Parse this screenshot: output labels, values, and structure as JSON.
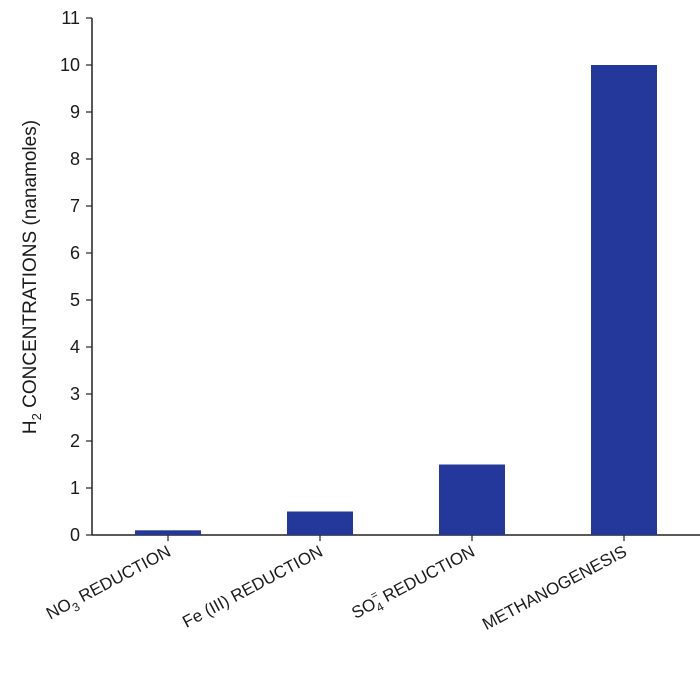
{
  "chart_data": {
    "type": "bar",
    "categories": [
      {
        "base": "NO",
        "sub": "3",
        "sup": "",
        "rest": " REDUCTION"
      },
      {
        "base": "Fe (III) REDUCTION",
        "sub": "",
        "sup": "",
        "rest": ""
      },
      {
        "base": "SO",
        "sub": "4",
        "sup": "=",
        "rest": " REDUCTION"
      },
      {
        "base": "METHANOGENESIS",
        "sub": "",
        "sup": "",
        "rest": ""
      }
    ],
    "values": [
      0.1,
      0.5,
      1.5,
      10
    ],
    "ylabel": {
      "pre": "H",
      "sub": "2",
      "post": " CONCENTRATIONS (nanamoles)"
    },
    "ylim": [
      0,
      11
    ],
    "yticks": [
      "0",
      "1",
      "2",
      "3",
      "4",
      "5",
      "6",
      "7",
      "8",
      "9",
      "10",
      "11"
    ],
    "grid": false,
    "bar_color": "#23389a",
    "axis_color": "#222222"
  }
}
